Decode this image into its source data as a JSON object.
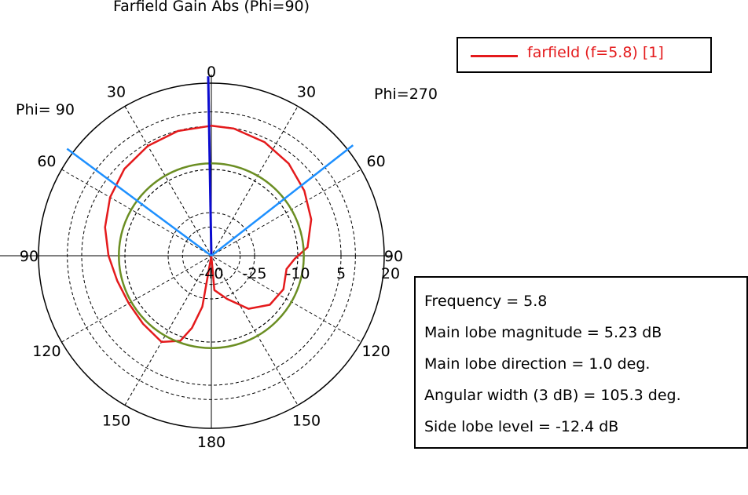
{
  "chart_data": {
    "type": "polar",
    "title": "Farfield Gain Abs (Phi=90)",
    "phi_labels": {
      "left": "Phi= 90",
      "right": "Phi=270"
    },
    "angle_labels": [
      {
        "deg": 0,
        "text": "0"
      },
      {
        "deg": 30,
        "text": "30"
      },
      {
        "deg": 60,
        "text": "60"
      },
      {
        "deg": 90,
        "text": "90"
      },
      {
        "deg": 120,
        "text": "120"
      },
      {
        "deg": 150,
        "text": "150"
      },
      {
        "deg": 180,
        "text": "180"
      },
      {
        "deg": -30,
        "text": "30"
      },
      {
        "deg": -60,
        "text": "60"
      },
      {
        "deg": -90,
        "text": "90"
      },
      {
        "deg": -120,
        "text": "120"
      },
      {
        "deg": -150,
        "text": "150"
      }
    ],
    "radial_range_db": [
      -40,
      20
    ],
    "radial_ticks": [
      {
        "db": -40,
        "text": "-40"
      },
      {
        "db": -25,
        "text": "-25"
      },
      {
        "db": -10,
        "text": "-10"
      },
      {
        "db": 5,
        "text": "5"
      },
      {
        "db": 20,
        "text": "20"
      }
    ],
    "series": [
      {
        "name": "farfield (f=5.8) [1]",
        "color": "#e41a1c",
        "points": [
          {
            "theta": 0,
            "db": 5.2
          },
          {
            "theta": 15,
            "db": 4.9
          },
          {
            "theta": 30,
            "db": 4.1
          },
          {
            "theta": 45,
            "db": 2.7
          },
          {
            "theta": 60,
            "db": 0.6
          },
          {
            "theta": 75,
            "db": -1.8
          },
          {
            "theta": 90,
            "db": -4.3
          },
          {
            "theta": 105,
            "db": -6.2
          },
          {
            "theta": 120,
            "db": -6.9
          },
          {
            "theta": 135,
            "db": -6.5
          },
          {
            "theta": 150,
            "db": -5.4
          },
          {
            "theta": 160,
            "db": -8.5
          },
          {
            "theta": 165,
            "db": -14
          },
          {
            "theta": 170,
            "db": -22
          },
          {
            "theta": 176,
            "db": -40
          },
          {
            "theta": 185,
            "db": -28
          },
          {
            "theta": 200,
            "db": -24
          },
          {
            "theta": 215,
            "db": -17.5
          },
          {
            "theta": 230,
            "db": -13.5
          },
          {
            "theta": 245,
            "db": -12.4
          },
          {
            "theta": 260,
            "db": -13.5
          },
          {
            "theta": 268,
            "db": -11
          },
          {
            "theta": 275,
            "db": -6.5
          },
          {
            "theta": 290,
            "db": -3.1
          },
          {
            "theta": 305,
            "db": -0.6
          },
          {
            "theta": 320,
            "db": 1.8
          },
          {
            "theta": 335,
            "db": 3.6
          },
          {
            "theta": 350,
            "db": 4.9
          },
          {
            "theta": 360,
            "db": 5.2
          }
        ]
      },
      {
        "name": "",
        "color": "#6b8e23",
        "constant_db": -7.9
      }
    ],
    "markers": [
      {
        "name": "main-lobe-direction",
        "theta": 1.0,
        "color": "#0b0bd0"
      },
      {
        "name": "beamwidth-edge",
        "theta": 53.4,
        "color": "#1e90ff"
      },
      {
        "name": "beamwidth-edge",
        "theta": -52.0,
        "color": "#1e90ff"
      }
    ]
  },
  "legend": {
    "label": "farfield (f=5.8) [1]"
  },
  "info": {
    "lines": [
      "Frequency = 5.8",
      "Main lobe magnitude =      5.23 dB",
      "Main lobe direction =     1.0 deg.",
      "Angular width (3 dB) =  105.3 deg.",
      "Side lobe level =  -12.4 dB"
    ]
  }
}
